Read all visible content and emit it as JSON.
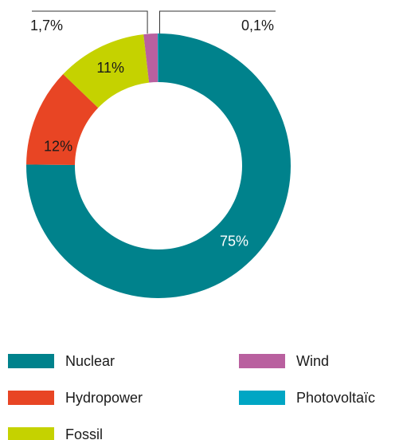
{
  "chart_data": {
    "type": "donut",
    "categories": [
      "Nuclear",
      "Hydropower",
      "Fossil",
      "Wind",
      "Photovoltaïc"
    ],
    "values": [
      75,
      12,
      11,
      1.7,
      0.1
    ],
    "value_labels": [
      "75%",
      "12%",
      "11%",
      "1,7%",
      "0,1%"
    ],
    "colors": [
      "#00828c",
      "#e84524",
      "#c5d200",
      "#b9609f",
      "#00a6c4"
    ]
  }
}
